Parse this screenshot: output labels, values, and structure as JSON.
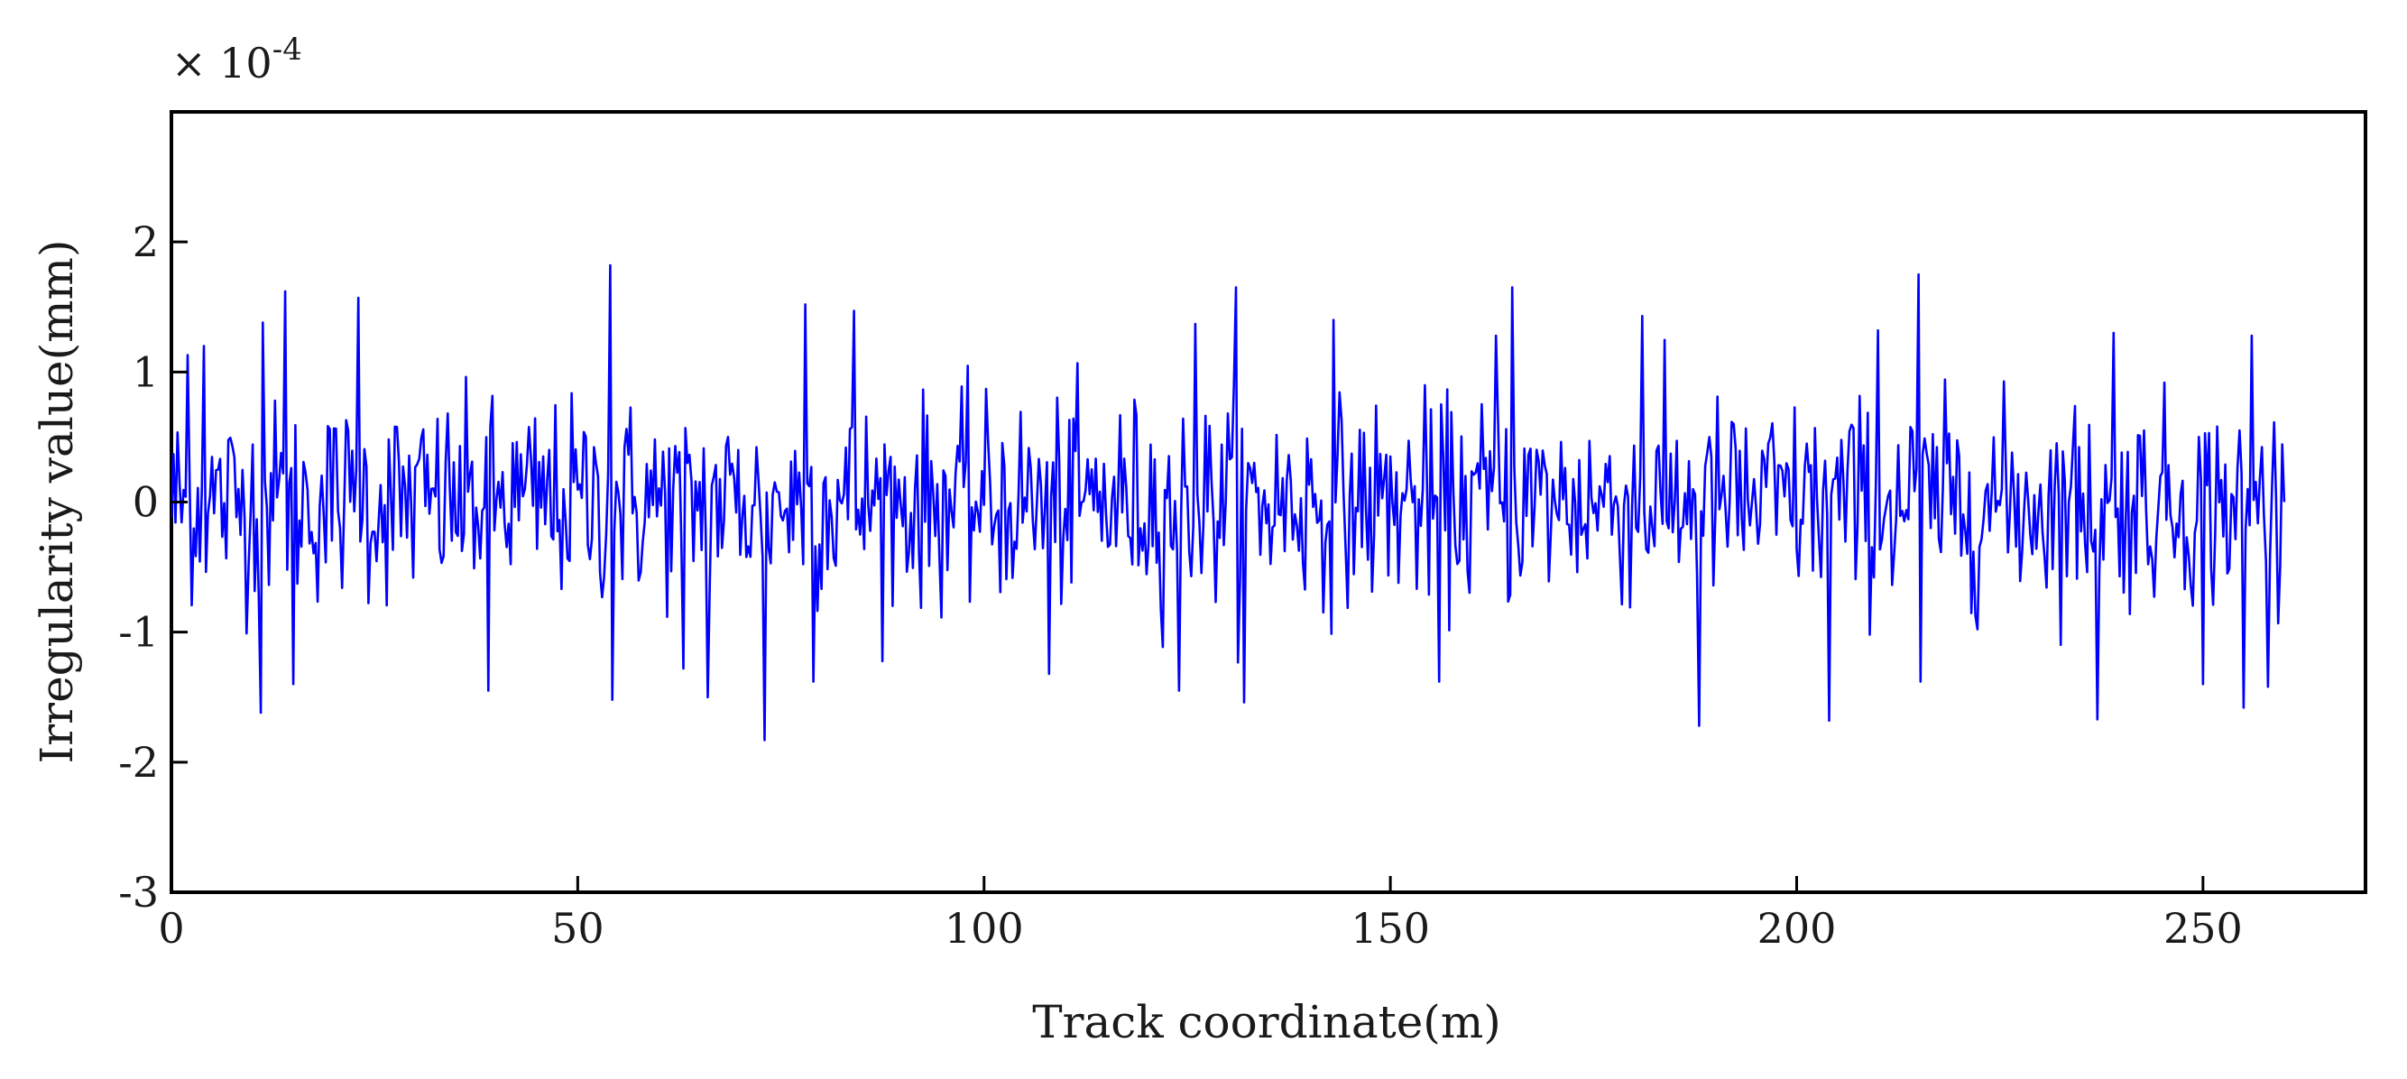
{
  "chart_data": {
    "type": "line",
    "title": "",
    "xlabel": "Track coordinate(m)",
    "ylabel": "Irregularity value(mm)",
    "y_scale_prefix": "× 10",
    "y_scale_exponent": "-4",
    "xlim": [
      0,
      270
    ],
    "ylim": [
      -3,
      3
    ],
    "x_ticks": [
      "0",
      "50",
      "100",
      "150",
      "200",
      "250"
    ],
    "x_tick_values": [
      0,
      50,
      100,
      150,
      200,
      250
    ],
    "y_ticks": [
      "-3",
      "-2",
      "-1",
      "0",
      "1",
      "2"
    ],
    "y_tick_values": [
      -3,
      -2,
      -1,
      0,
      1,
      2
    ],
    "grid": false,
    "legend": "none",
    "colors": {
      "series": "#0000ff",
      "axes": "#000000"
    },
    "series": [
      {
        "x_start": 0,
        "x_end": 260,
        "sample_step": 0.25,
        "typical_amplitude": 0.55,
        "peaks": [
          {
            "x": 2,
            "y": 1.13
          },
          {
            "x": 4,
            "y": 1.2
          },
          {
            "x": 11,
            "y": -1.62
          },
          {
            "x": 11,
            "y": 1.38
          },
          {
            "x": 14,
            "y": 1.62
          },
          {
            "x": 15,
            "y": -1.4
          },
          {
            "x": 23,
            "y": 1.57
          },
          {
            "x": 39,
            "y": -1.45
          },
          {
            "x": 54,
            "y": 1.82
          },
          {
            "x": 54,
            "y": -1.52
          },
          {
            "x": 63,
            "y": -1.28
          },
          {
            "x": 66,
            "y": -1.5
          },
          {
            "x": 73,
            "y": -1.83
          },
          {
            "x": 78,
            "y": 1.52
          },
          {
            "x": 79,
            "y": -1.38
          },
          {
            "x": 84,
            "y": 1.47
          },
          {
            "x": 108,
            "y": -1.32
          },
          {
            "x": 124,
            "y": -1.45
          },
          {
            "x": 126,
            "y": 1.37
          },
          {
            "x": 131,
            "y": 1.65
          },
          {
            "x": 132,
            "y": -1.54
          },
          {
            "x": 143,
            "y": 1.4
          },
          {
            "x": 156,
            "y": -1.38
          },
          {
            "x": 163,
            "y": 1.28
          },
          {
            "x": 165,
            "y": 1.65
          },
          {
            "x": 181,
            "y": 1.43
          },
          {
            "x": 188,
            "y": -1.72
          },
          {
            "x": 204,
            "y": -1.68
          },
          {
            "x": 210,
            "y": 1.32
          },
          {
            "x": 215,
            "y": 1.75
          },
          {
            "x": 215,
            "y": -1.38
          },
          {
            "x": 237,
            "y": -1.67
          },
          {
            "x": 239,
            "y": 1.3
          },
          {
            "x": 250,
            "y": -1.4
          },
          {
            "x": 255,
            "y": -1.58
          },
          {
            "x": 256,
            "y": 1.28
          },
          {
            "x": 258,
            "y": -1.42
          }
        ]
      }
    ]
  }
}
